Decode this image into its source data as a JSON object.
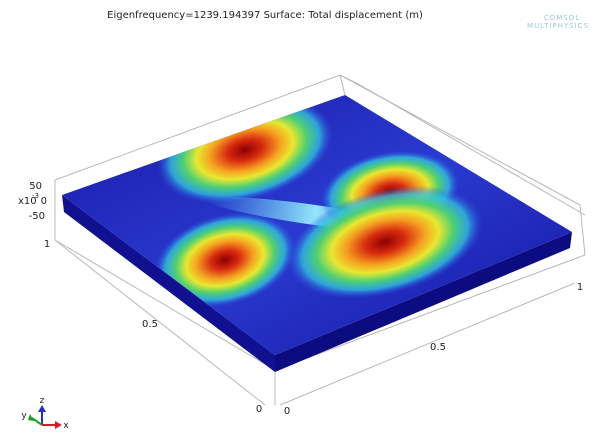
{
  "title": "Eigenfrequency=1239.194397   Surface: Total displacement (m)",
  "logo": {
    "line1": "COMSOL",
    "line2": "MULTIPHYSICS"
  },
  "z_axis": {
    "multiplier": "x10",
    "exponent": "-3",
    "ticks": [
      "50",
      "0",
      "-50"
    ]
  },
  "y_axis": {
    "ticks": [
      "1",
      "0.5",
      "0"
    ]
  },
  "x_axis": {
    "ticks": [
      "0",
      "0.5",
      "1"
    ]
  },
  "triad": {
    "x": "x",
    "y": "y",
    "z": "z"
  }
}
